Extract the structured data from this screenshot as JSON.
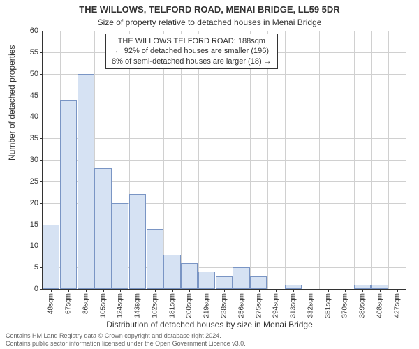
{
  "title": "THE WILLOWS, TELFORD ROAD, MENAI BRIDGE, LL59 5DR",
  "subtitle": "Size of property relative to detached houses in Menai Bridge",
  "ylabel": "Number of detached properties",
  "xlabel": "Distribution of detached houses by size in Menai Bridge",
  "chart": {
    "type": "bar",
    "ylim": [
      0,
      60
    ],
    "ytick_step": 5,
    "xticks": [
      "48sqm",
      "67sqm",
      "86sqm",
      "105sqm",
      "124sqm",
      "143sqm",
      "162sqm",
      "181sqm",
      "200sqm",
      "219sqm",
      "238sqm",
      "256sqm",
      "275sqm",
      "294sqm",
      "313sqm",
      "332sqm",
      "351sqm",
      "370sqm",
      "389sqm",
      "408sqm",
      "427sqm"
    ],
    "values": [
      15,
      44,
      50,
      28,
      20,
      22,
      14,
      8,
      6,
      4,
      3,
      5,
      3,
      0,
      1,
      0,
      0,
      0,
      1,
      1,
      0
    ],
    "bar_fill": "#d6e2f3",
    "bar_border": "#7a95c4",
    "grid_color": "#d0d0d0",
    "refline_x": 188,
    "refline_color": "#d63a3a",
    "background": "#ffffff"
  },
  "annotation": {
    "line1": "THE WILLOWS TELFORD ROAD: 188sqm",
    "line2": "← 92% of detached houses are smaller (196)",
    "line3": "8% of semi-detached houses are larger (18) →"
  },
  "footer": {
    "line1": "Contains HM Land Registry data © Crown copyright and database right 2024.",
    "line2": "Contains public sector information licensed under the Open Government Licence v3.0."
  }
}
